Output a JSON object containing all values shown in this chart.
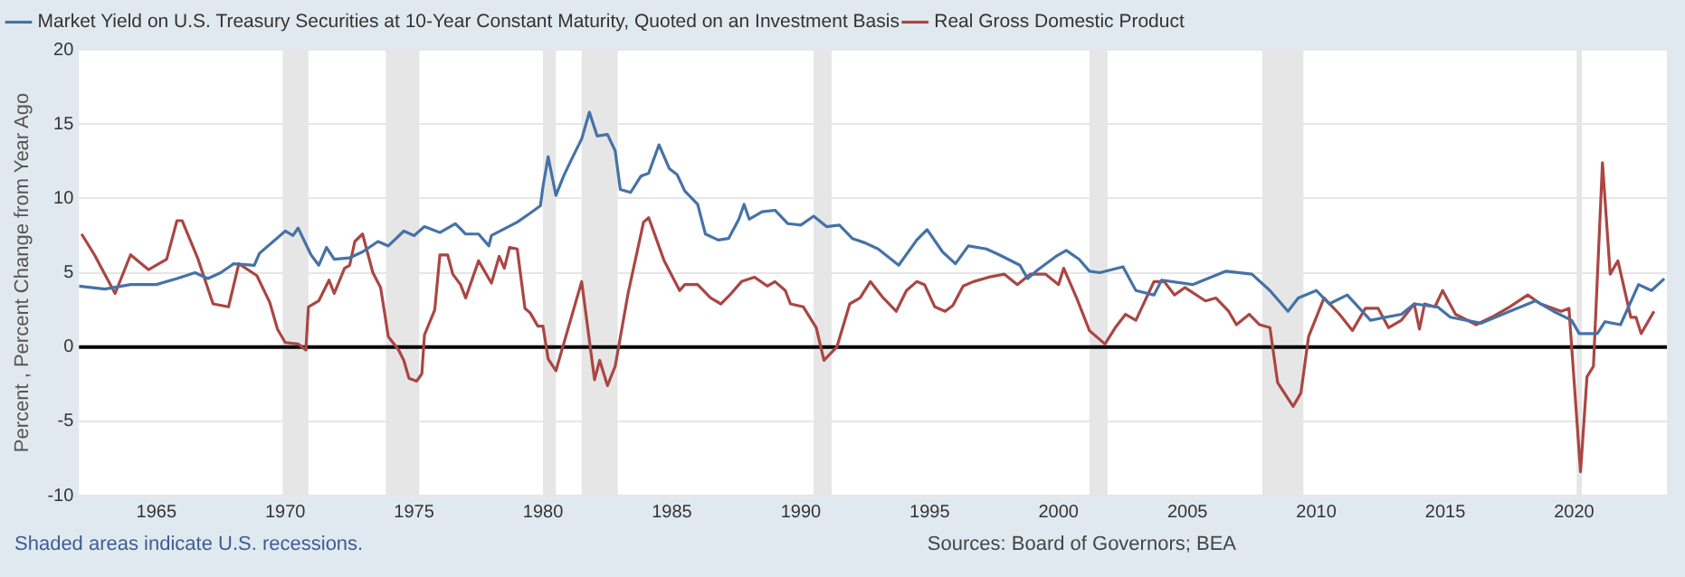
{
  "chart_data": {
    "type": "line",
    "ylabel": "Percent , Percent Change from Year Ago",
    "annotations": [
      "Shaded areas indicate U.S. recessions.",
      "Sources: Board of Governors; BEA"
    ],
    "legend": "top left",
    "grid": "y",
    "marker": "none",
    "line_style": "solid",
    "xlim": [
      1962,
      2023.6
    ],
    "xticks": [
      1965,
      1970,
      1975,
      1980,
      1985,
      1990,
      1995,
      2000,
      2005,
      2010,
      2015,
      2020
    ],
    "ylim": [
      -10,
      20
    ],
    "yticks": [
      -10,
      -5,
      0,
      5,
      10,
      15,
      20
    ],
    "ref_lines": [
      {
        "axis": "y",
        "value": 0,
        "color": "#000000"
      }
    ],
    "bands": [
      {
        "axis": "x",
        "from": 1969.9,
        "to": 1970.9,
        "color": "#e6e6e6"
      },
      {
        "axis": "x",
        "from": 1973.9,
        "to": 1975.2,
        "color": "#e6e6e6"
      },
      {
        "axis": "x",
        "from": 1980.0,
        "to": 1980.5,
        "color": "#e6e6e6"
      },
      {
        "axis": "x",
        "from": 1981.5,
        "to": 1982.9,
        "color": "#e6e6e6"
      },
      {
        "axis": "x",
        "from": 1990.5,
        "to": 1991.2,
        "color": "#e6e6e6"
      },
      {
        "axis": "x",
        "from": 2001.2,
        "to": 2001.9,
        "color": "#e6e6e6"
      },
      {
        "axis": "x",
        "from": 2007.9,
        "to": 2009.5,
        "color": "#e6e6e6"
      },
      {
        "axis": "x",
        "from": 2020.1,
        "to": 2020.3,
        "color": "#e6e6e6"
      }
    ],
    "series": [
      {
        "name": "Market Yield on U.S. Treasury Securities at 10-Year Constant Maturity, Quoted on an Investment Basis",
        "color": "#4572a7",
        "x": [
          1962.0,
          1963.0,
          1964.0,
          1965.0,
          1965.8,
          1966.5,
          1967.0,
          1967.5,
          1968.0,
          1968.8,
          1969.0,
          1969.8,
          1970.0,
          1970.3,
          1970.5,
          1971.0,
          1971.3,
          1971.6,
          1971.9,
          1972.5,
          1973.0,
          1973.6,
          1974.0,
          1974.6,
          1975.0,
          1975.4,
          1976.0,
          1976.6,
          1977.0,
          1977.5,
          1977.9,
          1978.0,
          1979.0,
          1979.5,
          1979.9,
          1980.0,
          1980.2,
          1980.5,
          1980.8,
          1981.1,
          1981.5,
          1981.8,
          1982.1,
          1982.5,
          1982.8,
          1983.0,
          1983.4,
          1983.8,
          1984.1,
          1984.5,
          1984.9,
          1985.2,
          1985.5,
          1986.0,
          1986.3,
          1986.8,
          1987.2,
          1987.6,
          1987.8,
          1988.0,
          1988.5,
          1989.0,
          1989.5,
          1990.0,
          1990.5,
          1991.0,
          1991.5,
          1992.0,
          1992.5,
          1993.0,
          1993.8,
          1994.5,
          1994.9,
          1995.5,
          1996.0,
          1996.5,
          1997.2,
          1997.7,
          1998.5,
          1998.8,
          1999.2,
          1999.9,
          2000.3,
          2000.8,
          2001.2,
          2001.6,
          2002.5,
          2003.0,
          2003.7,
          2004.0,
          2005.2,
          2006.5,
          2007.5,
          2008.2,
          2008.9,
          2009.3,
          2010.0,
          2010.5,
          2011.2,
          2012.1,
          2013.3,
          2013.8,
          2014.7,
          2015.2,
          2016.4,
          2017.5,
          2018.5,
          2019.2,
          2019.9,
          2020.2,
          2020.9,
          2021.2,
          2021.8,
          2022.5,
          2023.0,
          2023.5
        ],
        "values": [
          4.1,
          3.9,
          4.2,
          4.2,
          4.6,
          5.0,
          4.6,
          5.0,
          5.6,
          5.5,
          6.3,
          7.5,
          7.8,
          7.5,
          8.0,
          6.2,
          5.5,
          6.7,
          5.9,
          6.0,
          6.4,
          7.1,
          6.8,
          7.8,
          7.5,
          8.1,
          7.7,
          8.3,
          7.6,
          7.6,
          6.8,
          7.5,
          8.4,
          9.0,
          9.5,
          10.8,
          12.8,
          10.2,
          11.5,
          12.6,
          14.0,
          15.8,
          14.2,
          14.3,
          13.2,
          10.6,
          10.4,
          11.5,
          11.7,
          13.6,
          12.0,
          11.6,
          10.5,
          9.6,
          7.6,
          7.2,
          7.3,
          8.6,
          9.6,
          8.6,
          9.1,
          9.2,
          8.3,
          8.2,
          8.8,
          8.1,
          8.2,
          7.3,
          7.0,
          6.6,
          5.5,
          7.2,
          7.9,
          6.4,
          5.6,
          6.8,
          6.6,
          6.2,
          5.5,
          4.6,
          5.2,
          6.1,
          6.5,
          5.9,
          5.1,
          5.0,
          5.4,
          3.8,
          3.5,
          4.5,
          4.2,
          5.1,
          4.9,
          3.8,
          2.4,
          3.3,
          3.8,
          2.9,
          3.5,
          1.8,
          2.2,
          2.9,
          2.7,
          2.0,
          1.6,
          2.4,
          3.1,
          2.4,
          1.8,
          0.9,
          0.9,
          1.7,
          1.5,
          4.2,
          3.8,
          4.6
        ]
      },
      {
        "name": "Real Gross Domestic Product",
        "color": "#aa4643",
        "x": [
          1962.1,
          1962.6,
          1963.0,
          1963.4,
          1964.0,
          1964.7,
          1965.4,
          1965.8,
          1966.0,
          1966.6,
          1967.2,
          1967.8,
          1968.2,
          1968.9,
          1969.4,
          1969.7,
          1970.0,
          1970.5,
          1970.8,
          1970.9,
          1971.3,
          1971.7,
          1971.9,
          1972.3,
          1972.5,
          1972.7,
          1973.0,
          1973.4,
          1973.7,
          1974.0,
          1974.4,
          1974.6,
          1974.8,
          1975.1,
          1975.3,
          1975.4,
          1975.8,
          1976.0,
          1976.3,
          1976.5,
          1976.8,
          1977.0,
          1977.5,
          1978.0,
          1978.3,
          1978.5,
          1978.7,
          1979.0,
          1979.3,
          1979.5,
          1979.8,
          1980.0,
          1980.2,
          1980.5,
          1981.5,
          1982.0,
          1982.2,
          1982.5,
          1982.8,
          1983.3,
          1983.9,
          1984.1,
          1984.7,
          1985.3,
          1985.5,
          1986.0,
          1986.5,
          1986.9,
          1987.3,
          1987.7,
          1988.2,
          1988.7,
          1989.0,
          1989.4,
          1989.6,
          1990.1,
          1990.6,
          1990.9,
          1991.4,
          1991.9,
          1992.3,
          1992.7,
          1993.2,
          1993.7,
          1994.1,
          1994.5,
          1994.8,
          1995.2,
          1995.6,
          1995.9,
          1996.3,
          1996.7,
          1997.3,
          1997.9,
          1998.4,
          1998.9,
          1999.5,
          2000.0,
          2000.2,
          2000.7,
          2001.2,
          2001.8,
          2002.2,
          2002.6,
          2003.0,
          2003.7,
          2004.1,
          2004.5,
          2004.9,
          2005.7,
          2006.1,
          2006.6,
          2006.9,
          2007.4,
          2007.8,
          2008.2,
          2008.5,
          2009.1,
          2009.4,
          2009.7,
          2010.3,
          2010.9,
          2011.4,
          2011.9,
          2012.4,
          2012.8,
          2013.3,
          2013.8,
          2014.0,
          2014.2,
          2014.6,
          2014.9,
          2015.4,
          2016.2,
          2016.8,
          2017.5,
          2018.2,
          2018.7,
          2019.5,
          2019.8,
          2020.25,
          2020.5,
          2020.75,
          2021.1,
          2021.4,
          2021.7,
          2022.2,
          2022.4,
          2022.6,
          2023.1
        ],
        "values": [
          7.6,
          6.2,
          4.9,
          3.6,
          6.2,
          5.2,
          5.9,
          8.5,
          8.5,
          6.0,
          2.9,
          2.7,
          5.6,
          4.8,
          3.0,
          1.2,
          0.3,
          0.2,
          -0.2,
          2.7,
          3.1,
          4.5,
          3.6,
          5.3,
          5.5,
          7.1,
          7.6,
          5.0,
          4.0,
          0.7,
          -0.2,
          -0.9,
          -2.1,
          -2.3,
          -1.8,
          0.8,
          2.5,
          6.2,
          6.2,
          4.9,
          4.2,
          3.3,
          5.8,
          4.3,
          6.1,
          5.3,
          6.7,
          6.6,
          2.6,
          2.3,
          1.4,
          1.4,
          -0.8,
          -1.6,
          4.4,
          -2.2,
          -0.9,
          -2.6,
          -1.3,
          3.6,
          8.4,
          8.7,
          5.8,
          3.8,
          4.2,
          4.2,
          3.3,
          2.9,
          3.6,
          4.4,
          4.7,
          4.1,
          4.4,
          3.8,
          2.9,
          2.7,
          1.3,
          -0.9,
          0.0,
          2.9,
          3.3,
          4.4,
          3.3,
          2.4,
          3.8,
          4.4,
          4.2,
          2.7,
          2.4,
          2.8,
          4.1,
          4.4,
          4.7,
          4.9,
          4.2,
          4.9,
          4.9,
          4.2,
          5.3,
          3.3,
          1.1,
          0.2,
          1.3,
          2.2,
          1.8,
          4.4,
          4.4,
          3.5,
          4.0,
          3.1,
          3.3,
          2.4,
          1.5,
          2.2,
          1.5,
          1.3,
          -2.4,
          -4.0,
          -3.1,
          0.7,
          3.3,
          2.2,
          1.1,
          2.6,
          2.6,
          1.3,
          1.8,
          2.9,
          1.2,
          2.9,
          2.7,
          3.8,
          2.2,
          1.5,
          2.0,
          2.7,
          3.5,
          2.9,
          2.4,
          2.6,
          -8.4,
          -2.0,
          -1.3,
          12.4,
          4.9,
          5.8,
          2.0,
          2.0,
          0.9,
          2.4
        ]
      }
    ]
  }
}
